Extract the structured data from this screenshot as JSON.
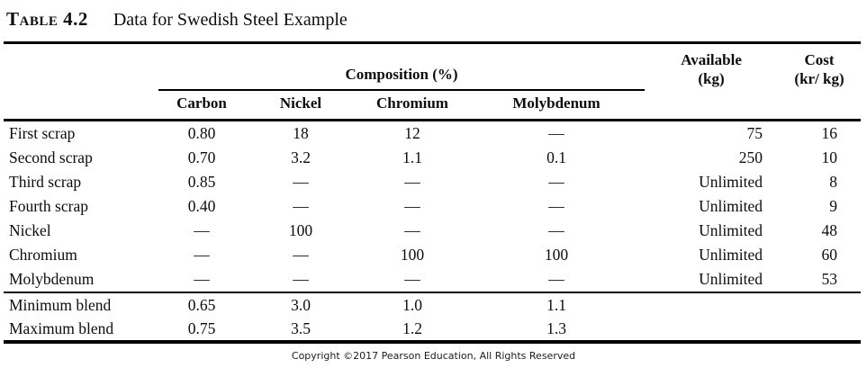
{
  "colors": {
    "background": "#ffffff",
    "text": "#0d0d0d",
    "rule": "#000000"
  },
  "title": {
    "label": "Table 4.2",
    "caption": "Data for Swedish Steel Example"
  },
  "table": {
    "group_header": "Composition (%)",
    "columns": [
      "Carbon",
      "Nickel",
      "Chromium",
      "Molybdenum"
    ],
    "available_header": {
      "line1": "Available",
      "line2": "(kg)"
    },
    "cost_header": {
      "line1": "Cost",
      "line2": "(kr/ kg)"
    },
    "rows": [
      {
        "label": "First scrap",
        "cells": [
          "0.80",
          "18",
          "12",
          "—",
          "75",
          "16"
        ]
      },
      {
        "label": "Second scrap",
        "cells": [
          "0.70",
          "3.2",
          "1.1",
          "0.1",
          "250",
          "10"
        ]
      },
      {
        "label": "Third scrap",
        "cells": [
          "0.85",
          "—",
          "—",
          "—",
          "Unlimited",
          "8"
        ]
      },
      {
        "label": "Fourth scrap",
        "cells": [
          "0.40",
          "—",
          "—",
          "—",
          "Unlimited",
          "9"
        ]
      },
      {
        "label": "Nickel",
        "cells": [
          "—",
          "100",
          "—",
          "—",
          "Unlimited",
          "48"
        ]
      },
      {
        "label": "Chromium",
        "cells": [
          "—",
          "—",
          "100",
          "100",
          "Unlimited",
          "60"
        ]
      },
      {
        "label": "Molybdenum",
        "cells": [
          "—",
          "—",
          "—",
          "—",
          "Unlimited",
          "53"
        ]
      }
    ],
    "blend_rows": [
      {
        "label": "Minimum blend",
        "cells": [
          "0.65",
          "3.0",
          "1.0",
          "1.1",
          "",
          ""
        ]
      },
      {
        "label": "Maximum blend",
        "cells": [
          "0.75",
          "3.5",
          "1.2",
          "1.3",
          "",
          ""
        ]
      }
    ]
  },
  "footer": "Copyright ©2017 Pearson Education, All Rights Reserved"
}
